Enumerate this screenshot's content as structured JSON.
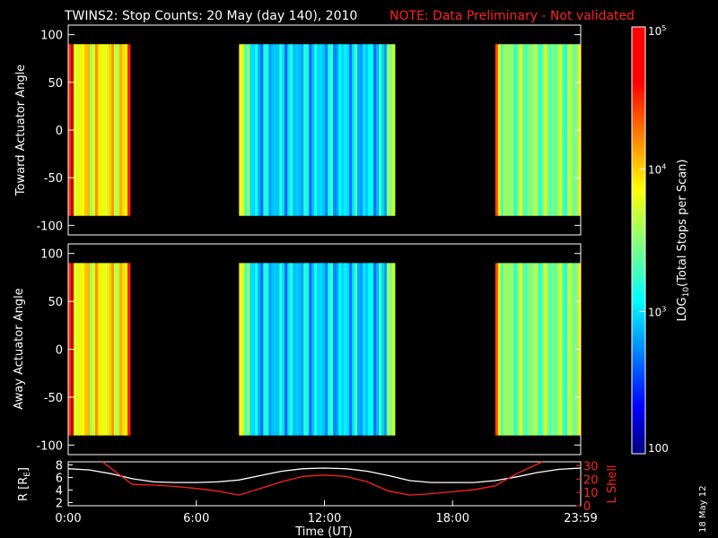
{
  "chart_data": [
    {
      "type": "heatmap",
      "panel": "top",
      "title": "TWINS2: Stop Counts: 20 May (day 140), 2010",
      "note": "NOTE: Data Preliminary - Not validated",
      "ylabel": "Toward Actuator Angle",
      "y_ticks": [
        "100",
        "50",
        "0",
        "-50",
        "-100"
      ],
      "ylim": [
        -110,
        110
      ],
      "xlim_hours": [
        0,
        24
      ],
      "angle_range": [
        -90,
        90
      ],
      "data_intervals_hours": [
        [
          0.0,
          2.9
        ],
        [
          8.0,
          15.3
        ],
        [
          20.0,
          24.0
        ]
      ],
      "typical_log10_counts": [
        3.9,
        3.0,
        3.5
      ]
    },
    {
      "type": "heatmap",
      "panel": "middle",
      "ylabel": "Away Actuator Angle",
      "y_ticks": [
        "100",
        "50",
        "0",
        "-50",
        "-100"
      ],
      "ylim": [
        -110,
        110
      ],
      "xlim_hours": [
        0,
        24
      ],
      "angle_range": [
        -90,
        90
      ],
      "data_intervals_hours": [
        [
          0.0,
          2.9
        ],
        [
          8.0,
          15.3
        ],
        [
          20.0,
          24.0
        ]
      ],
      "typical_log10_counts": [
        3.9,
        3.0,
        3.5
      ]
    },
    {
      "type": "line",
      "panel": "bottom",
      "xlabel": "Time (UT)",
      "x_ticks": [
        "0:00",
        "6:00",
        "12:00",
        "18:00",
        "23:59"
      ],
      "ylabel_left": "R [R",
      "ylabel_left_sub": "E",
      "ylabel_left_close": "]",
      "ylabel_right": "L Shell",
      "left_ticks": [
        "8",
        "6",
        "4",
        "2"
      ],
      "right_ticks": [
        "30",
        "20",
        "10",
        "0"
      ],
      "left_ylim": [
        1.5,
        8.5
      ],
      "right_ylim": [
        0,
        33
      ],
      "series": [
        {
          "axis": "left",
          "color": "#ffffff",
          "x": [
            0,
            1,
            2,
            3,
            4,
            5,
            6,
            7,
            8,
            9,
            10,
            11,
            12,
            13,
            14,
            15,
            16,
            17,
            18,
            19,
            20,
            21,
            22,
            23,
            24
          ],
          "y": [
            7.4,
            7.2,
            6.6,
            5.8,
            5.3,
            5.2,
            5.2,
            5.3,
            5.6,
            6.3,
            7.0,
            7.4,
            7.5,
            7.4,
            7.0,
            6.3,
            5.5,
            5.2,
            5.2,
            5.2,
            5.5,
            6.1,
            6.8,
            7.3,
            7.5
          ]
        },
        {
          "axis": "right",
          "color": "#ff2020",
          "x": [
            1.6,
            3,
            4,
            5,
            6,
            7,
            8,
            9,
            10,
            11,
            12,
            13,
            14,
            15,
            16,
            17,
            18,
            19,
            20,
            21,
            22.2
          ],
          "y": [
            33,
            16,
            15.5,
            14.5,
            13,
            11,
            8,
            13,
            18,
            22,
            23,
            22,
            18,
            11,
            8,
            9,
            10.5,
            12,
            15,
            24,
            33
          ]
        }
      ]
    },
    {
      "type": "colorbar",
      "label": "LOG",
      "label_sub": "10",
      "label_rest": "(Total Stops per Scan)",
      "ticks": [
        {
          "base": "10",
          "exp": "5",
          "log": 5
        },
        {
          "base": "10",
          "exp": "4",
          "log": 4
        },
        {
          "base": "10",
          "exp": "3",
          "log": 3
        },
        {
          "base": "100",
          "exp": "",
          "log": 2
        }
      ],
      "range": [
        2,
        5
      ]
    }
  ],
  "footer_date": "18 May 12"
}
